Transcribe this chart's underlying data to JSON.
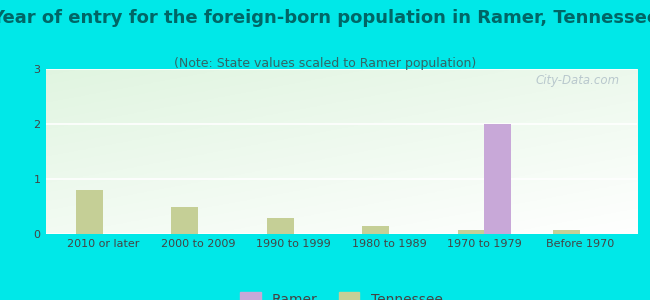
{
  "title": "Year of entry for the foreign-born population in Ramer, Tennessee",
  "subtitle": "(Note: State values scaled to Ramer population)",
  "categories": [
    "2010 or later",
    "2000 to 2009",
    "1990 to 1999",
    "1980 to 1989",
    "1970 to 1979",
    "Before 1970"
  ],
  "ramer_values": [
    0,
    0,
    0,
    0,
    2.0,
    0
  ],
  "tennessee_values": [
    0.8,
    0.5,
    0.3,
    0.15,
    0.07,
    0.08
  ],
  "ramer_color": "#c8a8d8",
  "tennessee_color": "#c5cf96",
  "background_color": "#00e8e8",
  "ylim": [
    0,
    3
  ],
  "yticks": [
    0,
    1,
    2,
    3
  ],
  "bar_width": 0.28,
  "title_fontsize": 13,
  "subtitle_fontsize": 9,
  "tick_fontsize": 8,
  "legend_fontsize": 10,
  "watermark": "City-Data.com"
}
